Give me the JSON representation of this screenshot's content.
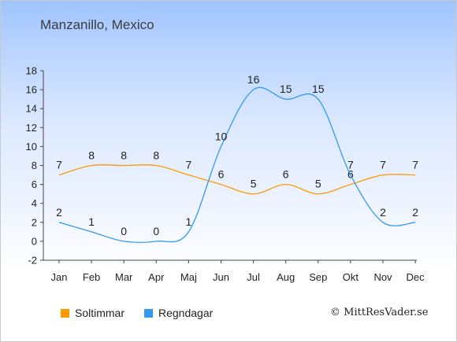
{
  "title": "Manzanillo, Mexico",
  "credit": "© MittResVader.se",
  "chart_data": {
    "type": "line",
    "categories": [
      "Jan",
      "Feb",
      "Mar",
      "Apr",
      "Maj",
      "Jun",
      "Jul",
      "Aug",
      "Sep",
      "Okt",
      "Nov",
      "Dec"
    ],
    "ylim": [
      -2,
      18
    ],
    "yticks": [
      -2,
      0,
      2,
      4,
      6,
      8,
      10,
      12,
      14,
      16,
      18
    ],
    "grid": false,
    "legend_position": "bottom-left",
    "series": [
      {
        "name": "Soltimmar",
        "color": "#ff9900",
        "values": [
          7,
          8,
          8,
          8,
          7,
          6,
          5,
          6,
          5,
          6,
          7,
          7
        ]
      },
      {
        "name": "Regndagar",
        "color": "#3399ee",
        "values": [
          2,
          1,
          0,
          0,
          1,
          10,
          16,
          15,
          15,
          7,
          2,
          2
        ]
      }
    ]
  }
}
